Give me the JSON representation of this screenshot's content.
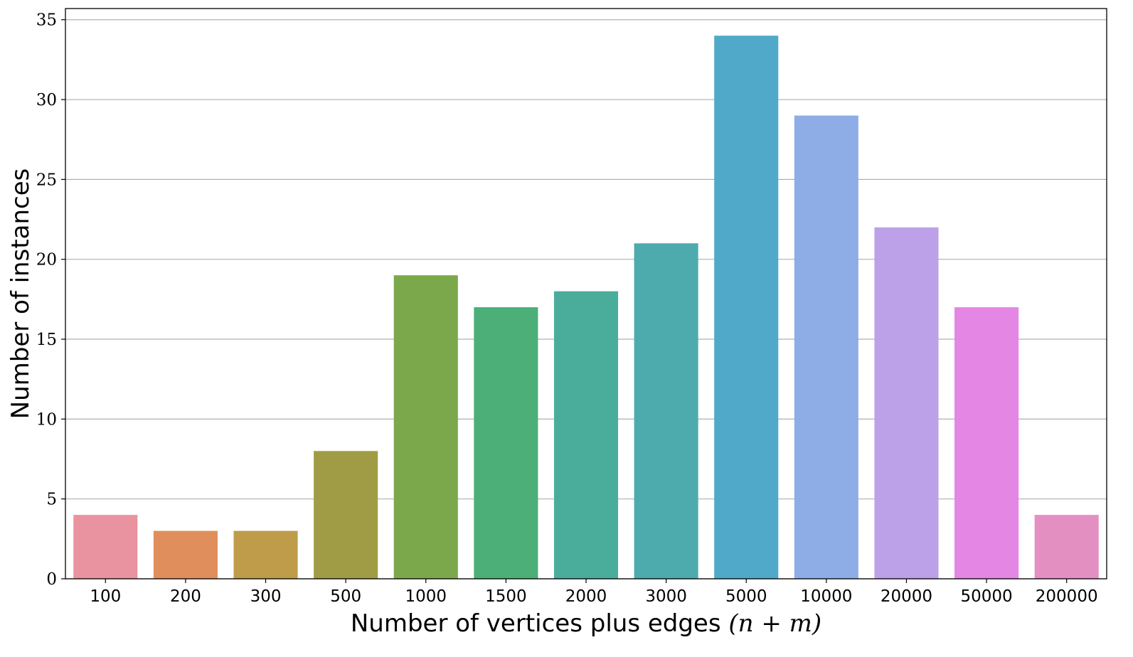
{
  "chart_data": {
    "type": "bar",
    "categories": [
      "100",
      "200",
      "300",
      "500",
      "1000",
      "1500",
      "2000",
      "3000",
      "5000",
      "10000",
      "20000",
      "50000",
      "200000"
    ],
    "values": [
      4,
      3,
      3,
      8,
      19,
      17,
      18,
      21,
      34,
      29,
      22,
      17,
      4
    ],
    "colors": [
      "#e8939f",
      "#e08f5c",
      "#bf9c4a",
      "#a09c45",
      "#7aa84b",
      "#4caf77",
      "#4aad9b",
      "#4dabae",
      "#50a9c9",
      "#8eade6",
      "#bca1e8",
      "#e486e3",
      "#e48fc1"
    ],
    "title": "",
    "xlabel": "Number of vertices plus edges",
    "xlabel_math": "(n + m)",
    "ylabel": "Number of instances",
    "ylim": [
      0,
      35.7
    ],
    "yticks": [
      "0",
      "5",
      "10",
      "15",
      "20",
      "25",
      "30",
      "35"
    ],
    "grid": "horizontal"
  }
}
